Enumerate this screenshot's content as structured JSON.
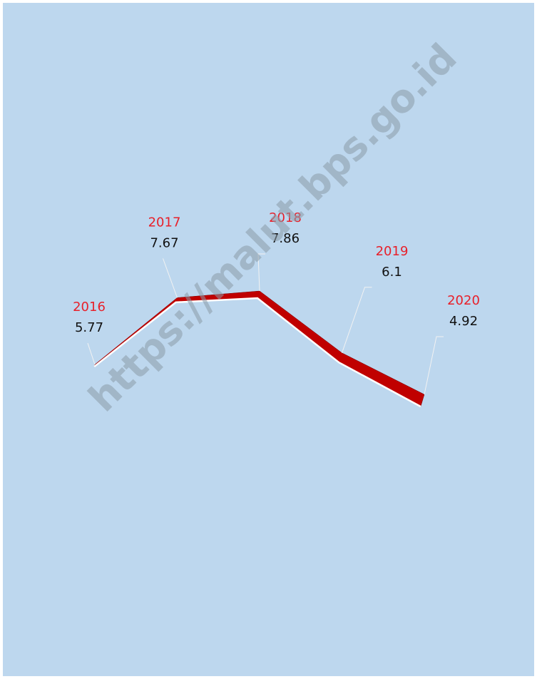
{
  "chart_data": {
    "type": "line",
    "categories": [
      "2016",
      "2017",
      "2018",
      "2019",
      "2020"
    ],
    "series": [
      {
        "color": "#c00000",
        "values": [
          5.77,
          7.67,
          7.86,
          6.1,
          4.92
        ]
      }
    ],
    "watermark": "https://malut.bps.go.id"
  }
}
